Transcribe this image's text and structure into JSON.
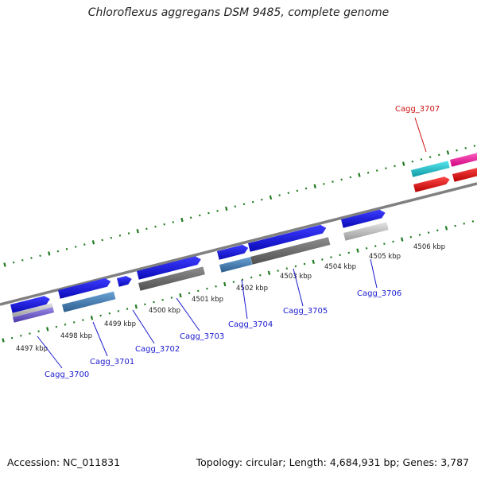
{
  "title": "Chloroflexus aggregans DSM 9485, complete genome",
  "accession": "Accession: NC_011831",
  "summary": "Topology: circular; Length: 4,684,931 bp; Genes: 3,787",
  "ticks": [
    {
      "label": "4497 kbp"
    },
    {
      "label": "4498 kbp"
    },
    {
      "label": "4499 kbp"
    },
    {
      "label": "4500 kbp"
    },
    {
      "label": "4501 kbp"
    },
    {
      "label": "4502 kbp"
    },
    {
      "label": "4503 kbp"
    },
    {
      "label": "4504 kbp"
    },
    {
      "label": "4505 kbp"
    },
    {
      "label": "4506 kbp"
    }
  ],
  "genes": [
    {
      "label": "Cagg_3700",
      "color": "#1a1ad0"
    },
    {
      "label": "Cagg_3701",
      "color": "#1a1ad0"
    },
    {
      "label": "Cagg_3702",
      "color": "#1a1ad0"
    },
    {
      "label": "Cagg_3703",
      "color": "#1a1ad0"
    },
    {
      "label": "Cagg_3704",
      "color": "#1a1ad0"
    },
    {
      "label": "Cagg_3705",
      "color": "#1a1ad0"
    },
    {
      "label": "Cagg_3706",
      "color": "#1a1ad0"
    },
    {
      "label": "Cagg_3707",
      "color": "#cc1111"
    }
  ],
  "colors": {
    "backbone": "#808080",
    "ticks": "#1e7a1e",
    "forward_gene": "#1414e6",
    "cog_gray": "#7a7a7a",
    "cog_steel": "#4a84b8",
    "cog_light": "#c8c8c8",
    "cog_purple": "#6a5acd",
    "cog_cyan": "#20c8d0",
    "cog_pink": "#ff1aa0",
    "cog_red": "#ee1111"
  }
}
